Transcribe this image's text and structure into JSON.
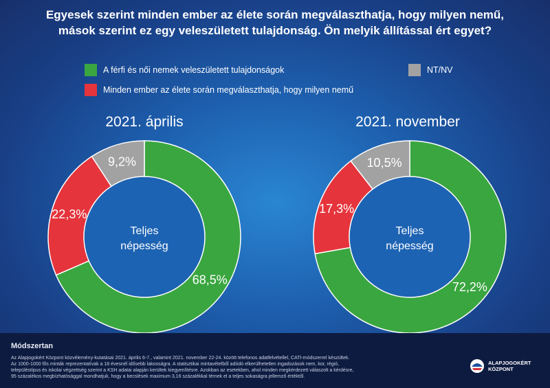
{
  "title_lines": [
    "Egyesek szerint minden ember az élete során megválaszthatja, hogy milyen nemű,",
    "mások szerint ez egy veleszületett tulajdonság. Ön melyik állítással ért egyet?"
  ],
  "legend": [
    {
      "label": "A férfi és női nemek veleszületett tulajdonságok",
      "color": "#3aa640"
    },
    {
      "label": "NT/NV",
      "color": "#a2a2a2"
    },
    {
      "label": "Minden ember az élete során megválaszthatja, hogy milyen nemű",
      "color": "#e5343c"
    }
  ],
  "chart_data": [
    {
      "type": "pie",
      "title": "2021. április",
      "center_label": [
        "Teljes",
        "népesség"
      ],
      "categories": [
        "A férfi és női nemek veleszületett tulajdonságok",
        "Minden ember az élete során megválaszthatja, hogy milyen nemű",
        "NT/NV"
      ],
      "values": [
        68.5,
        22.3,
        9.2
      ],
      "labels": [
        "68,5%",
        "22,3%",
        "9,2%"
      ],
      "colors": [
        "#3aa640",
        "#e5343c",
        "#a2a2a2"
      ]
    },
    {
      "type": "pie",
      "title": "2021. november",
      "center_label": [
        "Teljes",
        "népesség"
      ],
      "categories": [
        "A férfi és női nemek veleszületett tulajdonságok",
        "Minden ember az élete során megválaszthatja, hogy milyen nemű",
        "NT/NV"
      ],
      "values": [
        72.2,
        17.3,
        10.5
      ],
      "labels": [
        "72,2%",
        "17,3%",
        "10,5%"
      ],
      "colors": [
        "#3aa640",
        "#e5343c",
        "#a2a2a2"
      ]
    }
  ],
  "footer": {
    "heading": "Módszertan",
    "lines": [
      "Az Alapjogokért Központ közvélemény-kutatásai 2021. április 6-7., valamint 2021. november 22-24. között telefonos adatfelvétellel, CATI-módszerrel készültek.",
      "Az 1000-1000 fős minták reprezentatívak a 18 évesnél idősebb lakosságra. A statisztikai mintavételből adódó elkerülhetetlen ingadozások nem, kor, régió,",
      "településtípus és iskolai végzettség szerint a KSH adatai alapján kerültek kiegyenlítésre. Azokban az esetekben, ahol minden megkérdezett válaszolt a kérdésre,",
      "95 százalékos megbízhatósággal mondhatjuk, hogy a becslések maximum 3,16 százalékkal térnek el a teljes sokaságra jellemző értéktől."
    ]
  },
  "logo": {
    "line1": "ALAPJOGOKÉRT",
    "line2": "KÖZPONT"
  }
}
